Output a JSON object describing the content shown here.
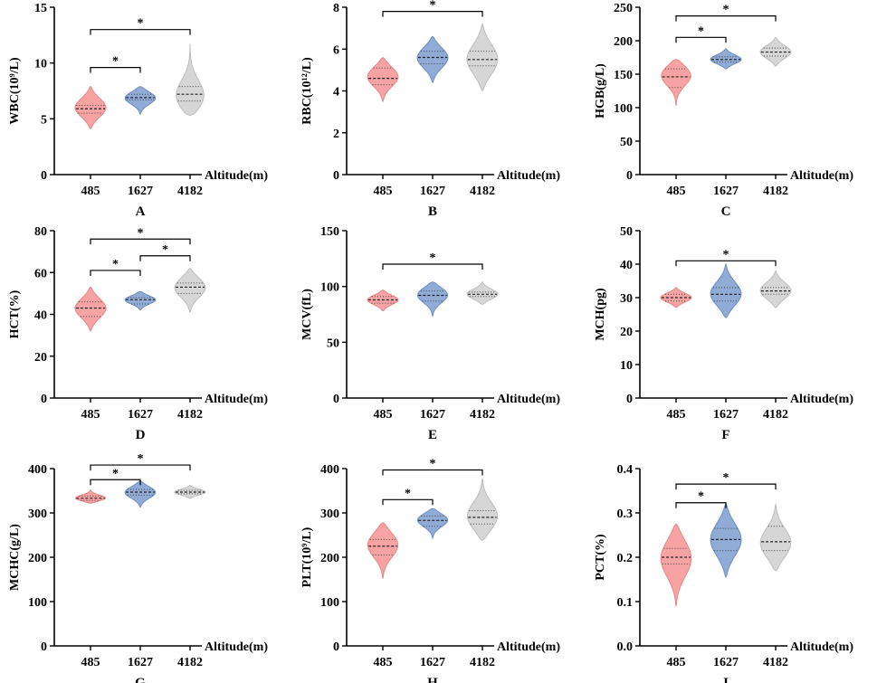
{
  "colors": {
    "g485": "#f7a3a3",
    "g1627": "#8fabd6",
    "g4182": "#d6d6d6",
    "axis": "#000000"
  },
  "chart_data": [
    {
      "type": "violin",
      "letter": "A",
      "ylabel": "WBC(10⁹/L)",
      "xlabel": "Altitude(m)",
      "categories": [
        "485",
        "1627",
        "4182"
      ],
      "ylim": [
        0,
        15
      ],
      "yticks": [
        0,
        5,
        10,
        15
      ],
      "tick_labels": [
        "0",
        "5",
        "10",
        "15"
      ],
      "groups": [
        {
          "min": 4.1,
          "max": 7.9,
          "median": 5.9,
          "q1": 5.5,
          "q3": 6.2,
          "peak": 6.0
        },
        {
          "min": 5.4,
          "max": 7.9,
          "median": 6.9,
          "q1": 6.7,
          "q3": 7.2,
          "peak": 6.9
        },
        {
          "min": 5.3,
          "max": 11.7,
          "median": 7.2,
          "q1": 6.6,
          "q3": 7.9,
          "peak": 6.8
        }
      ],
      "sig": [
        {
          "from": 0,
          "to": 1,
          "level": 9.6,
          "label": "*"
        },
        {
          "from": 0,
          "to": 2,
          "level": 13.0,
          "label": "*"
        }
      ]
    },
    {
      "type": "violin",
      "letter": "B",
      "ylabel": "RBC(10¹²/L)",
      "xlabel": "Altitude(m)",
      "categories": [
        "485",
        "1627",
        "4182"
      ],
      "ylim": [
        0,
        8
      ],
      "yticks": [
        0,
        2,
        4,
        6,
        8
      ],
      "tick_labels": [
        "0",
        "2",
        "4",
        "6",
        "8"
      ],
      "groups": [
        {
          "min": 3.5,
          "max": 5.6,
          "median": 4.6,
          "q1": 4.3,
          "q3": 5.1,
          "peak": 4.7
        },
        {
          "min": 4.4,
          "max": 6.6,
          "median": 5.6,
          "q1": 5.3,
          "q3": 5.9,
          "peak": 5.6
        },
        {
          "min": 4.0,
          "max": 7.2,
          "median": 5.5,
          "q1": 5.2,
          "q3": 5.9,
          "peak": 5.5
        }
      ],
      "sig": [
        {
          "from": 0,
          "to": 2,
          "level": 7.8,
          "label": "*"
        }
      ]
    },
    {
      "type": "violin",
      "letter": "C",
      "ylabel": "HGB(g/L)",
      "xlabel": "Altitude(m)",
      "categories": [
        "485",
        "1627",
        "4182"
      ],
      "ylim": [
        0,
        250
      ],
      "yticks": [
        0,
        50,
        100,
        150,
        200,
        250
      ],
      "tick_labels": [
        "0",
        "50",
        "100",
        "150",
        "200",
        "250"
      ],
      "groups": [
        {
          "min": 103,
          "max": 172,
          "median": 146,
          "q1": 130,
          "q3": 158,
          "peak": 150
        },
        {
          "min": 158,
          "max": 188,
          "median": 172,
          "q1": 168,
          "q3": 176,
          "peak": 172
        },
        {
          "min": 162,
          "max": 205,
          "median": 183,
          "q1": 177,
          "q3": 189,
          "peak": 183
        }
      ],
      "sig": [
        {
          "from": 0,
          "to": 1,
          "level": 205,
          "label": "*"
        },
        {
          "from": 0,
          "to": 2,
          "level": 237,
          "label": "*"
        }
      ]
    },
    {
      "type": "violin",
      "letter": "D",
      "ylabel": "HCT(%)",
      "xlabel": "Altitude(m)",
      "categories": [
        "485",
        "1627",
        "4182"
      ],
      "ylim": [
        0,
        80
      ],
      "yticks": [
        0,
        20,
        40,
        60,
        80
      ],
      "tick_labels": [
        "0",
        "20",
        "40",
        "60",
        "80"
      ],
      "groups": [
        {
          "min": 32,
          "max": 53,
          "median": 43,
          "q1": 39,
          "q3": 46,
          "peak": 43
        },
        {
          "min": 42,
          "max": 51,
          "median": 47,
          "q1": 45,
          "q3": 48,
          "peak": 47
        },
        {
          "min": 41,
          "max": 62,
          "median": 53,
          "q1": 50,
          "q3": 55,
          "peak": 53
        }
      ],
      "sig": [
        {
          "from": 0,
          "to": 1,
          "level": 61,
          "label": "*"
        },
        {
          "from": 1,
          "to": 2,
          "level": 68,
          "label": "*"
        },
        {
          "from": 0,
          "to": 2,
          "level": 76,
          "label": "*"
        }
      ]
    },
    {
      "type": "violin",
      "letter": "E",
      "ylabel": "MCV(fL)",
      "xlabel": "Altitude(m)",
      "categories": [
        "485",
        "1627",
        "4182"
      ],
      "ylim": [
        0,
        150
      ],
      "yticks": [
        0,
        50,
        100,
        150
      ],
      "tick_labels": [
        "0",
        "50",
        "100",
        "150"
      ],
      "groups": [
        {
          "min": 78,
          "max": 97,
          "median": 88,
          "q1": 85,
          "q3": 91,
          "peak": 88
        },
        {
          "min": 73,
          "max": 104,
          "median": 92,
          "q1": 87,
          "q3": 96,
          "peak": 93
        },
        {
          "min": 84,
          "max": 104,
          "median": 93,
          "q1": 91,
          "q3": 95,
          "peak": 93
        }
      ],
      "sig": [
        {
          "from": 0,
          "to": 2,
          "level": 120,
          "label": "*"
        }
      ]
    },
    {
      "type": "violin",
      "letter": "F",
      "ylabel": "MCH(pg)",
      "xlabel": "Altitude(m)",
      "categories": [
        "485",
        "1627",
        "4182"
      ],
      "ylim": [
        0,
        50
      ],
      "yticks": [
        0,
        10,
        20,
        30,
        40,
        50
      ],
      "tick_labels": [
        "0",
        "10",
        "20",
        "30",
        "40",
        "50"
      ],
      "groups": [
        {
          "min": 27,
          "max": 33,
          "median": 30,
          "q1": 29,
          "q3": 31,
          "peak": 30
        },
        {
          "min": 24,
          "max": 40,
          "median": 31,
          "q1": 29,
          "q3": 33,
          "peak": 31
        },
        {
          "min": 27,
          "max": 38,
          "median": 32,
          "q1": 31,
          "q3": 33,
          "peak": 32
        }
      ],
      "sig": [
        {
          "from": 0,
          "to": 2,
          "level": 41,
          "label": "*"
        }
      ]
    },
    {
      "type": "violin",
      "letter": "G",
      "ylabel": "MCHC(g/L)",
      "xlabel": "Altitude(m)",
      "categories": [
        "485",
        "1627",
        "4182"
      ],
      "ylim": [
        0,
        400
      ],
      "yticks": [
        0,
        100,
        200,
        300,
        400
      ],
      "tick_labels": [
        "0",
        "100",
        "200",
        "300",
        "400"
      ],
      "groups": [
        {
          "min": 322,
          "max": 352,
          "median": 333,
          "q1": 328,
          "q3": 338,
          "peak": 333
        },
        {
          "min": 313,
          "max": 372,
          "median": 347,
          "q1": 340,
          "q3": 353,
          "peak": 347
        },
        {
          "min": 333,
          "max": 362,
          "median": 347,
          "q1": 343,
          "q3": 351,
          "peak": 347
        }
      ],
      "sig": [
        {
          "from": 0,
          "to": 1,
          "level": 375,
          "label": "*"
        },
        {
          "from": 0,
          "to": 2,
          "level": 408,
          "label": "*"
        }
      ]
    },
    {
      "type": "violin",
      "letter": "H",
      "ylabel": "PLT(10⁹/L)",
      "xlabel": "Altitude(m)",
      "categories": [
        "485",
        "1627",
        "4182"
      ],
      "ylim": [
        0,
        400
      ],
      "yticks": [
        0,
        100,
        200,
        300,
        400
      ],
      "tick_labels": [
        "0",
        "100",
        "200",
        "300",
        "400"
      ],
      "groups": [
        {
          "min": 152,
          "max": 278,
          "median": 225,
          "q1": 205,
          "q3": 240,
          "peak": 230
        },
        {
          "min": 243,
          "max": 310,
          "median": 283,
          "q1": 270,
          "q3": 293,
          "peak": 285
        },
        {
          "min": 238,
          "max": 378,
          "median": 290,
          "q1": 275,
          "q3": 305,
          "peak": 290
        }
      ],
      "sig": [
        {
          "from": 0,
          "to": 1,
          "level": 330,
          "label": "*"
        },
        {
          "from": 0,
          "to": 2,
          "level": 397,
          "label": "*"
        }
      ]
    },
    {
      "type": "violin",
      "letter": "I",
      "ylabel": "PCT(%)",
      "xlabel": "Altitude(m)",
      "categories": [
        "485",
        "1627",
        "4182"
      ],
      "ylim": [
        0,
        0.4
      ],
      "yticks": [
        0,
        0.1,
        0.2,
        0.3,
        0.4
      ],
      "tick_labels": [
        "0.0",
        "0.1",
        "0.2",
        "0.3",
        "0.4"
      ],
      "groups": [
        {
          "min": 0.09,
          "max": 0.275,
          "median": 0.2,
          "q1": 0.185,
          "q3": 0.22,
          "peak": 0.2
        },
        {
          "min": 0.155,
          "max": 0.32,
          "median": 0.24,
          "q1": 0.215,
          "q3": 0.265,
          "peak": 0.24
        },
        {
          "min": 0.17,
          "max": 0.32,
          "median": 0.235,
          "q1": 0.215,
          "q3": 0.27,
          "peak": 0.23
        }
      ],
      "sig": [
        {
          "from": 0,
          "to": 1,
          "level": 0.323,
          "label": "*"
        },
        {
          "from": 0,
          "to": 2,
          "level": 0.365,
          "label": "*"
        }
      ]
    }
  ]
}
